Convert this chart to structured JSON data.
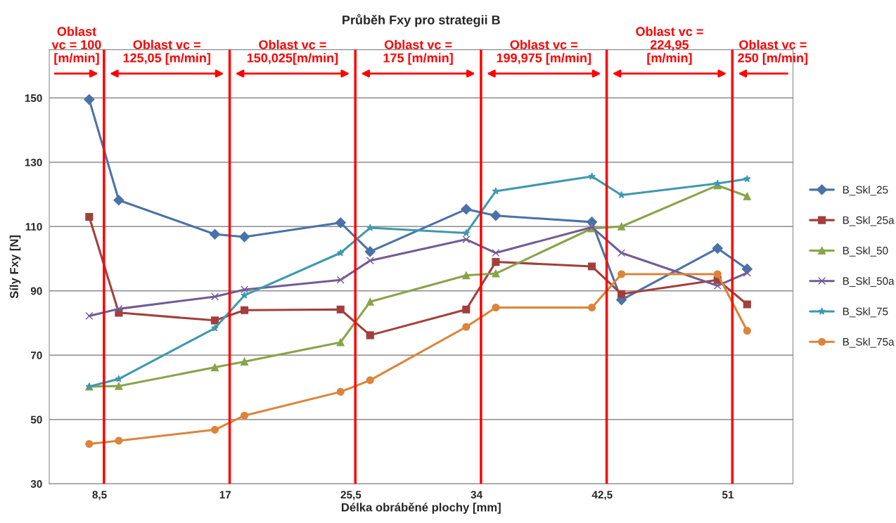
{
  "chart_data": {
    "type": "line",
    "title": "Průběh Fxy pro strategii B",
    "xlabel": "Délka obráběné plochy [mm]",
    "ylabel": "Síly Fxy [N]",
    "x": [
      7.8,
      9.8,
      16.3,
      18.3,
      24.8,
      26.8,
      33.3,
      35.3,
      41.8,
      43.8,
      50.3,
      52.3
    ],
    "series": [
      {
        "name": "B_Skl_25",
        "color": "#4a72a8",
        "marker": "diamond",
        "values": [
          149.5,
          118.2,
          107.6,
          106.8,
          111.2,
          102.2,
          115.4,
          113.4,
          111.4,
          87.2,
          103.2,
          96.8
        ]
      },
      {
        "name": "B_Skl_25a",
        "color": "#a23f3c",
        "marker": "square",
        "values": [
          113,
          83.2,
          80.8,
          84,
          84.2,
          76.2,
          84.2,
          99,
          97.6,
          89,
          93.4,
          85.8
        ]
      },
      {
        "name": "B_Skl_50",
        "color": "#88a44a",
        "marker": "triangle",
        "values": [
          60.2,
          60.4,
          66.2,
          68,
          74,
          86.6,
          94.8,
          95.4,
          109.4,
          110,
          122.8,
          119.4
        ]
      },
      {
        "name": "B_Skl_50a",
        "color": "#735b96",
        "marker": "cross",
        "values": [
          82.2,
          84.4,
          88.2,
          90.4,
          93.4,
          99.4,
          106,
          101.8,
          109.8,
          101.8,
          91.6,
          95.6
        ]
      },
      {
        "name": "B_Skl_75",
        "color": "#3f99ae",
        "marker": "star",
        "values": [
          60.2,
          62.6,
          78.4,
          88.6,
          101.8,
          109.6,
          108,
          121,
          125.6,
          119.8,
          123.4,
          124.8
        ]
      },
      {
        "name": "B_Skl_75a",
        "color": "#dc843a",
        "marker": "circle",
        "values": [
          42.4,
          43.4,
          46.8,
          51.2,
          58.6,
          62.2,
          78.8,
          84.8,
          84.8,
          95.2,
          95.2,
          77.6
        ]
      }
    ],
    "xlim": [
      5.1,
      55.4
    ],
    "ylim": [
      30,
      165
    ],
    "xticks": [
      {
        "value": 8.5,
        "label": "8,5"
      },
      17,
      {
        "value": 25.5,
        "label": "25,5"
      },
      34,
      {
        "value": 42.5,
        "label": "42,5"
      },
      51
    ],
    "yticks": [
      30,
      50,
      70,
      90,
      110,
      130,
      150
    ],
    "ref_lines": [
      {
        "axis": "x",
        "value": 8.8,
        "color": "#ff0000"
      },
      {
        "axis": "x",
        "value": 17.3,
        "color": "#ff0000"
      },
      {
        "axis": "x",
        "value": 25.8,
        "color": "#ff0000"
      },
      {
        "axis": "x",
        "value": 34.3,
        "color": "#ff0000"
      },
      {
        "axis": "x",
        "value": 42.8,
        "color": "#ff0000"
      },
      {
        "axis": "x",
        "value": 51.3,
        "color": "#ff0000"
      }
    ],
    "annotations": [
      "Oblast\nvc = 100\n[m/min]",
      "Oblast vc =\n125,05 [m/min]",
      "Oblast vc =\n150,025[m/min]",
      "Oblast vc =\n175 [m/min]",
      "Oblast vc =\n199,975 [m/min]",
      "Oblast vc =\n224,95\n[m/min]",
      "Oblast vc =\n250 [m/min]"
    ],
    "grid": "y",
    "legend": "right",
    "line_style": "solid"
  }
}
